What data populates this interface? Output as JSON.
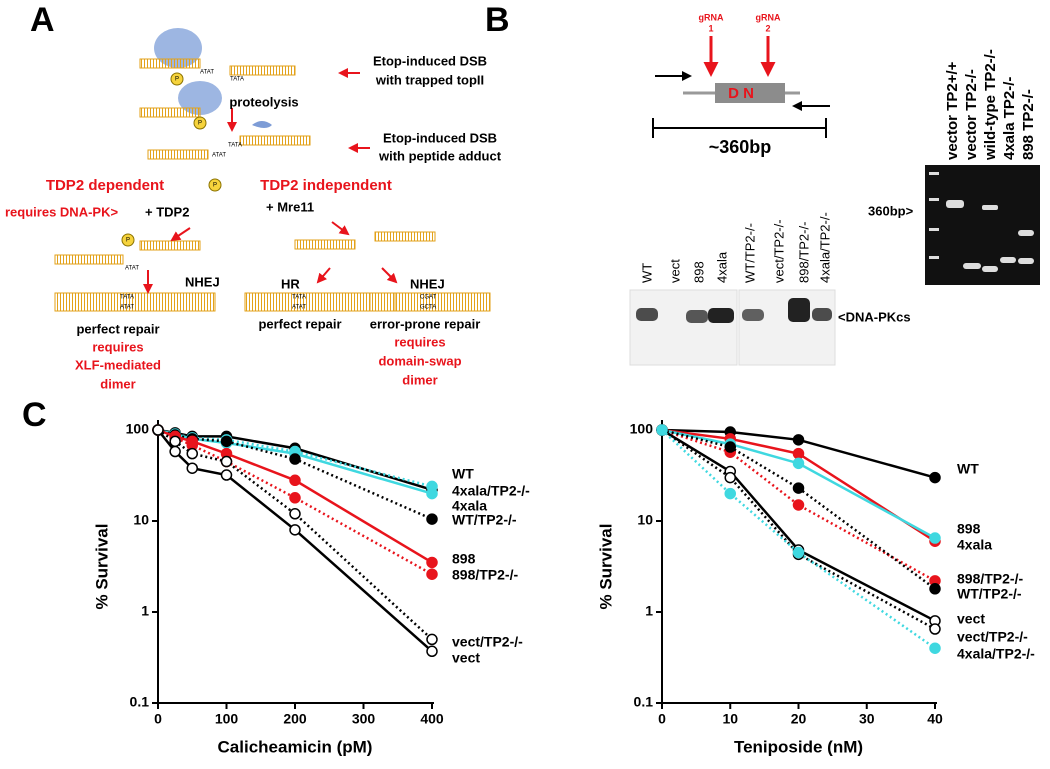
{
  "panel_labels": [
    "A",
    "B",
    "C"
  ],
  "panel_a": {
    "trapped_label": [
      "Etop-induced DSB",
      "with trapped topII"
    ],
    "proteolysis": "proteolysis",
    "adduct_label": [
      "Etop-induced DSB",
      "with peptide adduct"
    ],
    "tdp2_dependent": "TDP2 dependent",
    "tdp2_independent": "TDP2 independent",
    "requires_dnapk": "requires DNA-PK>",
    "plus_tdp2": "+ TDP2",
    "plus_mre11": "+ Mre11",
    "nhej_left": "NHEJ",
    "hr": "HR",
    "nhej_right": "NHEJ",
    "perfect_left": "perfect repair",
    "perfect_mid": "perfect repair",
    "error_prone": "error-prone repair",
    "xlf_note": [
      "requires",
      "XLF-mediated",
      "dimer"
    ],
    "swap_note": [
      "requires",
      "domain-swap",
      "dimer"
    ],
    "phospho": "P",
    "dna_top": "ATAT",
    "dna_bottom": "TATA",
    "cgat": "CGAT",
    "gcta": "GCTA"
  },
  "panel_b": {
    "grna1": [
      "gRNA",
      "1"
    ],
    "grna2": [
      "gRNA",
      "2"
    ],
    "domain": "D N",
    "size": "~360bp",
    "western_lanes": [
      "WT",
      "vect",
      "898",
      "4xala",
      "WT/TP2-/-",
      "vect/TP2-/-",
      "898/TP2-/-",
      "4xala/TP2-/-"
    ],
    "western_band": "<DNA-PKcs",
    "pcr_lanes": [
      "vector TP2+/+",
      "vector TP2-/-",
      "wild-type TP2-/-",
      "4xala TP2-/-",
      "898 TP2-/-"
    ],
    "pcr_marker": "360bp>"
  },
  "chart_data": [
    {
      "type": "line",
      "x_label": "Calicheamicin (pM)",
      "y_label": "% Survival",
      "log_y": true,
      "x": [
        0,
        25,
        50,
        100,
        200,
        400
      ],
      "xlim": [
        0,
        400
      ],
      "xticks": [
        0,
        100,
        200,
        300,
        400
      ],
      "ylim": [
        0.1,
        100
      ],
      "yticks": [
        0.1,
        1,
        10,
        100
      ],
      "series": [
        {
          "name": "WT",
          "color": "#000000",
          "line_style": "solid",
          "marker_fill": "filled",
          "values": [
            100,
            93,
            85,
            85,
            63,
            22
          ]
        },
        {
          "name": "4xala/TP2-/-",
          "color": "#3fd8e0",
          "line_style": "dotted",
          "marker_fill": "filled",
          "values": [
            100,
            90,
            82,
            78,
            58,
            24
          ]
        },
        {
          "name": "4xala",
          "color": "#3fd8e0",
          "line_style": "solid",
          "marker_fill": "filled",
          "values": [
            100,
            90,
            80,
            72,
            55,
            20
          ]
        },
        {
          "name": "WT/TP2-/-",
          "color": "#000000",
          "line_style": "dotted",
          "marker_fill": "filled",
          "values": [
            100,
            88,
            80,
            75,
            48,
            10.5
          ]
        },
        {
          "name": "898",
          "color": "#e8141c",
          "line_style": "solid",
          "marker_fill": "filled",
          "values": [
            100,
            85,
            75,
            55,
            28,
            3.5
          ]
        },
        {
          "name": "898/TP2-/-",
          "color": "#e8141c",
          "line_style": "dotted",
          "marker_fill": "filled",
          "values": [
            100,
            82,
            68,
            45,
            18,
            2.6
          ]
        },
        {
          "name": "vect/TP2-/-",
          "color": "#000000",
          "line_style": "dotted",
          "marker_fill": "open",
          "values": [
            100,
            75,
            55,
            45,
            12,
            0.5
          ]
        },
        {
          "name": "vect",
          "color": "#000000",
          "line_style": "solid",
          "marker_fill": "open",
          "values": [
            100,
            58,
            38,
            32,
            8,
            0.37
          ]
        }
      ]
    },
    {
      "type": "line",
      "x_label": "Teniposide (nM)",
      "y_label": "% Survival",
      "log_y": true,
      "x": [
        0,
        10,
        20,
        40
      ],
      "xlim": [
        0,
        40
      ],
      "xticks": [
        0,
        10,
        20,
        30,
        40
      ],
      "ylim": [
        0.1,
        100
      ],
      "yticks": [
        0.1,
        1,
        10,
        100
      ],
      "series": [
        {
          "name": "WT",
          "color": "#000000",
          "line_style": "solid",
          "marker_fill": "filled",
          "values": [
            100,
            95,
            78,
            30
          ]
        },
        {
          "name": "898",
          "color": "#e8141c",
          "line_style": "solid",
          "marker_fill": "filled",
          "values": [
            100,
            80,
            55,
            6
          ]
        },
        {
          "name": "4xala",
          "color": "#3fd8e0",
          "line_style": "solid",
          "marker_fill": "filled",
          "values": [
            100,
            70,
            43,
            6.5
          ]
        },
        {
          "name": "898/TP2-/-",
          "color": "#e8141c",
          "line_style": "dotted",
          "marker_fill": "filled",
          "values": [
            100,
            57,
            15,
            2.2
          ]
        },
        {
          "name": "WT/TP2-/-",
          "color": "#000000",
          "line_style": "dotted",
          "marker_fill": "filled",
          "values": [
            100,
            65,
            23,
            1.8
          ]
        },
        {
          "name": "vect",
          "color": "#000000",
          "line_style": "solid",
          "marker_fill": "open",
          "values": [
            100,
            35,
            4.8,
            0.8
          ]
        },
        {
          "name": "vect/TP2-/-",
          "color": "#000000",
          "line_style": "dotted",
          "marker_fill": "open",
          "values": [
            100,
            30,
            4.3,
            0.65
          ]
        },
        {
          "name": "4xala/TP2-/-",
          "color": "#3fd8e0",
          "line_style": "dotted",
          "marker_fill": "filled",
          "values": [
            100,
            20,
            4.5,
            0.4
          ]
        }
      ]
    }
  ]
}
